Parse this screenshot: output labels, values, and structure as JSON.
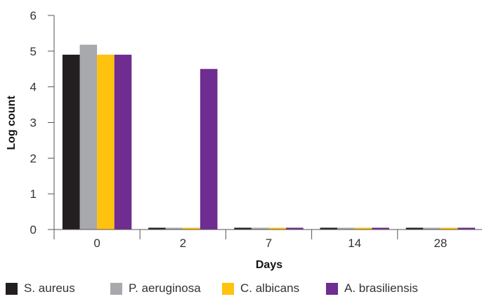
{
  "chart_data": {
    "type": "bar",
    "title": "",
    "xlabel": "Days",
    "ylabel": "Log count",
    "categories": [
      "0",
      "2",
      "7",
      "14",
      "28"
    ],
    "ylim": [
      0,
      6
    ],
    "yticks": [
      0,
      1,
      2,
      3,
      4,
      5,
      6
    ],
    "grid": false,
    "legend_position": "bottom",
    "series": [
      {
        "name": "S. aureus",
        "color": "#231f20",
        "values": [
          4.9,
          0.05,
          0.05,
          0.05,
          0.05
        ]
      },
      {
        "name": "P. aeruginosa",
        "color": "#a7a9ac",
        "values": [
          5.18,
          0.05,
          0.05,
          0.05,
          0.05
        ]
      },
      {
        "name": "C. albicans",
        "color": "#ffc20e",
        "values": [
          4.9,
          0.05,
          0.05,
          0.05,
          0.05
        ]
      },
      {
        "name": "A. brasiliensis",
        "color": "#6f2c91",
        "values": [
          4.9,
          4.5,
          0.05,
          0.05,
          0.05
        ]
      }
    ]
  }
}
